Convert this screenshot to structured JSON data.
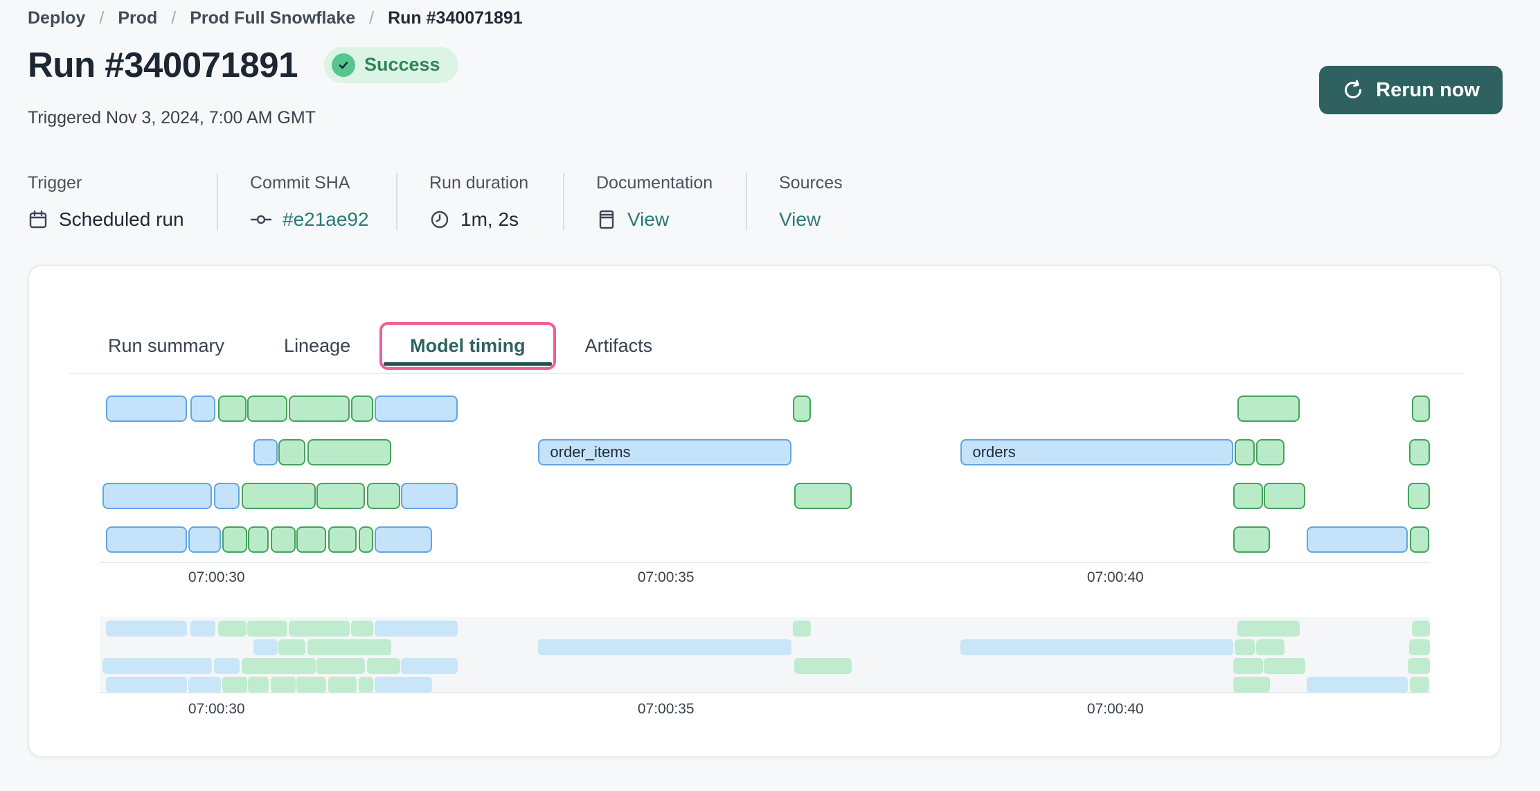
{
  "page": {
    "background": "#f7f8fa"
  },
  "breadcrumb": {
    "separator": "/",
    "items": [
      {
        "label": "Deploy",
        "current": false
      },
      {
        "label": "Prod",
        "current": false
      },
      {
        "label": "Prod Full Snowflake",
        "current": false
      },
      {
        "label": "Run #340071891",
        "current": true
      }
    ]
  },
  "header": {
    "title": "Run #340071891",
    "status": {
      "label": "Success",
      "icon": "check-circle-icon",
      "text_color": "#2f8557",
      "background": "#dcf4e6",
      "icon_color": "#57c58e"
    },
    "triggered": "Triggered Nov 3, 2024, 7:00 AM GMT",
    "rerun": {
      "label": "Rerun now",
      "icon": "refresh-icon",
      "background": "#2e615f"
    }
  },
  "meta": {
    "columns": [
      {
        "id": "trigger",
        "label": "Trigger",
        "value": "Scheduled run",
        "icon": "calendar-icon",
        "link": false
      },
      {
        "id": "commit-sha",
        "label": "Commit SHA",
        "value": "#e21ae92",
        "icon": "commit-icon",
        "link": true
      },
      {
        "id": "run-duration",
        "label": "Run duration",
        "value": "1m, 2s",
        "icon": "clock-icon",
        "link": false
      },
      {
        "id": "documentation",
        "label": "Documentation",
        "value": "View",
        "icon": "docs-icon",
        "link": true
      },
      {
        "id": "sources",
        "label": "Sources",
        "value": "View",
        "icon": null,
        "link": true
      }
    ]
  },
  "tabs": {
    "items": [
      {
        "id": "run-summary",
        "label": "Run summary",
        "active": false
      },
      {
        "id": "lineage",
        "label": "Lineage",
        "active": false
      },
      {
        "id": "model-timing",
        "label": "Model timing",
        "active": true,
        "highlighted": true
      },
      {
        "id": "artifacts",
        "label": "Artifacts",
        "active": false
      }
    ],
    "highlight_color": "#ee6097",
    "active_color": "#2c6361"
  },
  "chart_data": {
    "type": "gantt",
    "title": "Model timing",
    "description": "Model execution timeline for run #340071891; seconds are offsets from 07:00:00 GMT. Blue = model runs, green = test/short tasks. An overview (minimap) strip repeats the same bars below the main plot.",
    "time_axis": {
      "domain_seconds": [
        28.7,
        43.5
      ],
      "ticks": [
        {
          "seconds": 30,
          "label": "07:00:30"
        },
        {
          "seconds": 35,
          "label": "07:00:35"
        },
        {
          "seconds": 40,
          "label": "07:00:40"
        }
      ],
      "grid": false
    },
    "colors": {
      "blue_fill": "#c4e2f9",
      "blue_border": "#61a5e5",
      "green_fill": "#b9ebc8",
      "green_border": "#42a35a",
      "overview_blue": "#c9e5f8",
      "overview_green": "#bfecce",
      "overview_background": "#f5f6f8",
      "axis_line": "#e9ebee"
    },
    "overview": {
      "present": true
    },
    "rows": [
      {
        "bars": [
          {
            "start": 28.77,
            "end": 29.67,
            "color": "blue"
          },
          {
            "start": 29.71,
            "end": 29.99,
            "color": "blue"
          },
          {
            "start": 30.02,
            "end": 30.33,
            "color": "green"
          },
          {
            "start": 30.34,
            "end": 30.79,
            "color": "green"
          },
          {
            "start": 30.8,
            "end": 31.48,
            "color": "green"
          },
          {
            "start": 31.5,
            "end": 31.74,
            "color": "green"
          },
          {
            "start": 31.76,
            "end": 32.68,
            "color": "blue"
          },
          {
            "start": 36.41,
            "end": 36.61,
            "color": "green"
          },
          {
            "start": 41.36,
            "end": 42.05,
            "color": "green"
          },
          {
            "start": 43.3,
            "end": 43.5,
            "color": "green"
          }
        ]
      },
      {
        "bars": [
          {
            "start": 30.41,
            "end": 30.68,
            "color": "blue"
          },
          {
            "start": 30.69,
            "end": 30.99,
            "color": "green"
          },
          {
            "start": 31.01,
            "end": 31.94,
            "color": "green"
          },
          {
            "start": 33.58,
            "end": 36.4,
            "color": "blue",
            "label": "order_items"
          },
          {
            "start": 38.28,
            "end": 41.31,
            "color": "blue",
            "label": "orders"
          },
          {
            "start": 41.33,
            "end": 41.55,
            "color": "green"
          },
          {
            "start": 41.57,
            "end": 41.88,
            "color": "green"
          },
          {
            "start": 43.27,
            "end": 43.5,
            "color": "green"
          }
        ]
      },
      {
        "bars": [
          {
            "start": 28.73,
            "end": 29.95,
            "color": "blue"
          },
          {
            "start": 29.97,
            "end": 30.26,
            "color": "blue"
          },
          {
            "start": 30.28,
            "end": 31.1,
            "color": "green"
          },
          {
            "start": 31.11,
            "end": 31.65,
            "color": "green"
          },
          {
            "start": 31.67,
            "end": 32.04,
            "color": "green"
          },
          {
            "start": 32.05,
            "end": 32.68,
            "color": "blue"
          },
          {
            "start": 36.43,
            "end": 37.07,
            "color": "green"
          },
          {
            "start": 41.31,
            "end": 41.64,
            "color": "green"
          },
          {
            "start": 41.65,
            "end": 42.11,
            "color": "green"
          },
          {
            "start": 43.25,
            "end": 43.5,
            "color": "green"
          }
        ]
      },
      {
        "bars": [
          {
            "start": 28.77,
            "end": 29.67,
            "color": "blue"
          },
          {
            "start": 29.69,
            "end": 30.05,
            "color": "blue"
          },
          {
            "start": 30.06,
            "end": 30.34,
            "color": "green"
          },
          {
            "start": 30.35,
            "end": 30.58,
            "color": "green"
          },
          {
            "start": 30.6,
            "end": 30.88,
            "color": "green"
          },
          {
            "start": 30.89,
            "end": 31.22,
            "color": "green"
          },
          {
            "start": 31.24,
            "end": 31.56,
            "color": "green"
          },
          {
            "start": 31.58,
            "end": 31.74,
            "color": "green"
          },
          {
            "start": 31.76,
            "end": 32.4,
            "color": "blue"
          },
          {
            "start": 41.31,
            "end": 41.72,
            "color": "green"
          },
          {
            "start": 42.13,
            "end": 43.25,
            "color": "blue"
          },
          {
            "start": 43.28,
            "end": 43.49,
            "color": "green"
          }
        ]
      }
    ]
  }
}
